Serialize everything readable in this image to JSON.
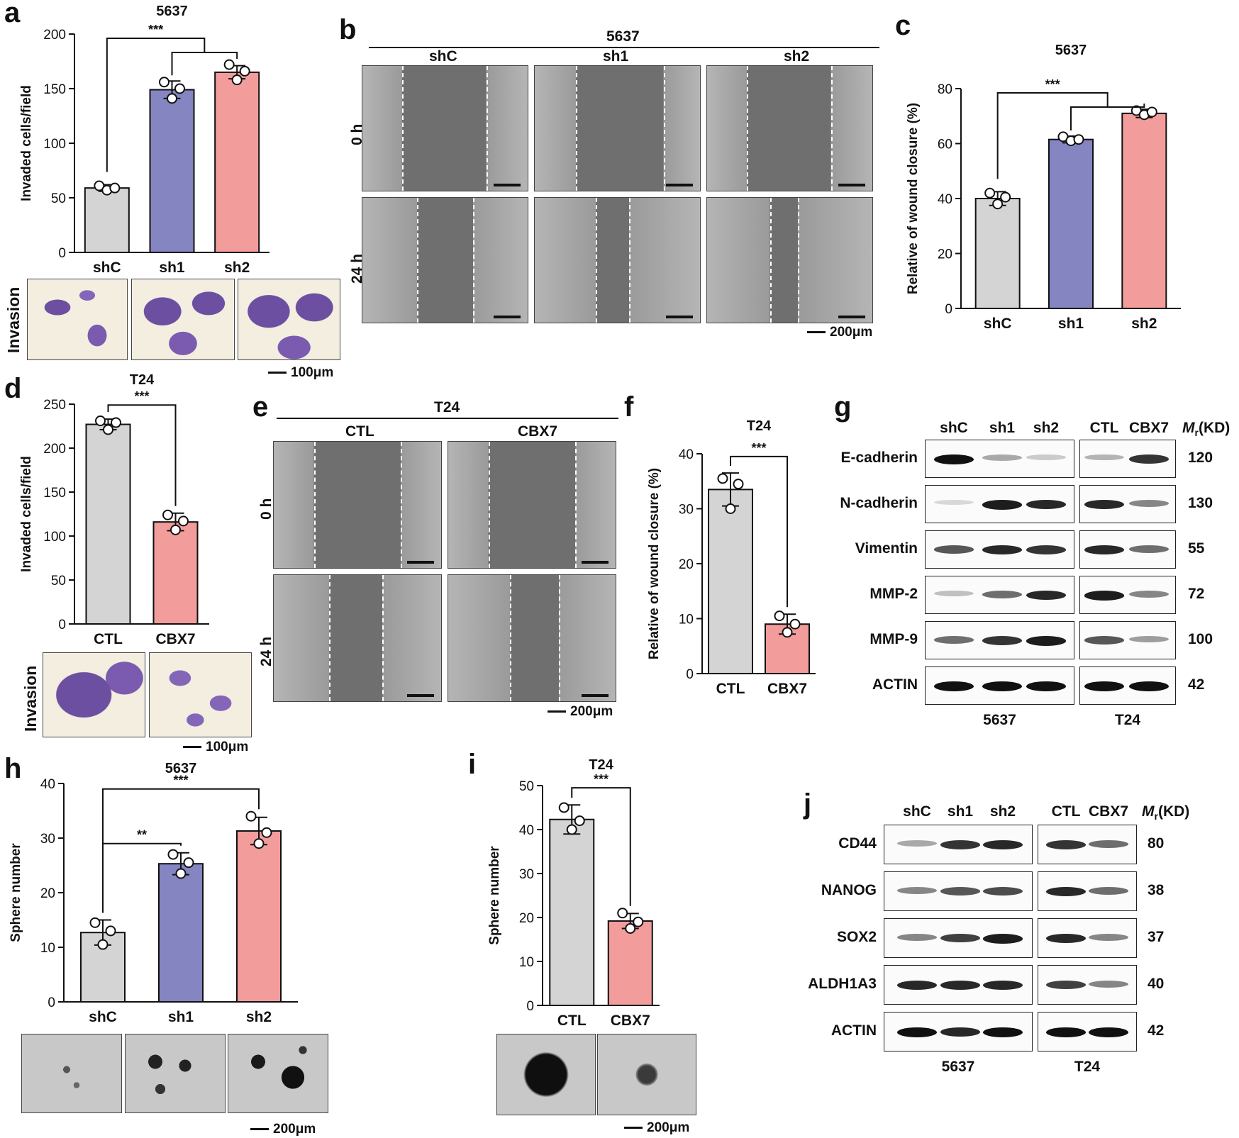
{
  "panels": {
    "a": {
      "letter": "a",
      "invasion": "Invasion",
      "scale": "100μm"
    },
    "b": {
      "letter": "b",
      "cell_line": "5637",
      "columns": [
        "shC",
        "sh1",
        "sh2"
      ],
      "rows": [
        "0 h",
        "24 h"
      ],
      "scale": "200μm"
    },
    "c": {
      "letter": "c"
    },
    "d": {
      "letter": "d",
      "invasion": "Invasion",
      "scale": "100μm"
    },
    "e": {
      "letter": "e",
      "cell_line": "T24",
      "columns": [
        "CTL",
        "CBX7"
      ],
      "rows": [
        "0 h",
        "24 h"
      ],
      "scale": "200μm"
    },
    "f": {
      "letter": "f"
    },
    "g": {
      "letter": "g",
      "lanes_left": [
        "shC",
        "sh1",
        "sh2"
      ],
      "lanes_right": [
        "CTL",
        "CBX7"
      ],
      "mr_header": "M",
      "mr_sub": "r",
      "mr_unit": "(KD)",
      "rows": [
        {
          "name": "E-cadherin",
          "kd": "120"
        },
        {
          "name": "N-cadherin",
          "kd": "130"
        },
        {
          "name": "Vimentin",
          "kd": "55"
        },
        {
          "name": "MMP-2",
          "kd": "72"
        },
        {
          "name": "MMP-9",
          "kd": "100"
        },
        {
          "name": "ACTIN",
          "kd": "42"
        }
      ],
      "footer_left": "5637",
      "footer_right": "T24"
    },
    "h": {
      "letter": "h",
      "scale": "200μm"
    },
    "i": {
      "letter": "i",
      "scale": "200μm"
    },
    "j": {
      "letter": "j",
      "lanes_left": [
        "shC",
        "sh1",
        "sh2"
      ],
      "lanes_right": [
        "CTL",
        "CBX7"
      ],
      "mr_header": "M",
      "mr_sub": "r",
      "mr_unit": "(KD)",
      "rows": [
        {
          "name": "CD44",
          "kd": "80"
        },
        {
          "name": "NANOG",
          "kd": "38"
        },
        {
          "name": "SOX2",
          "kd": "37"
        },
        {
          "name": "ALDH1A3",
          "kd": "40"
        },
        {
          "name": "ACTIN",
          "kd": "42"
        }
      ],
      "footer_left": "5637",
      "footer_right": "T24"
    }
  },
  "colors": {
    "gray": "#d4d4d4",
    "blue": "#8585c1",
    "pink": "#f29c9c",
    "stain": "#6c4fa0"
  },
  "chart_data": [
    {
      "id": "a",
      "type": "bar",
      "title": "5637",
      "ylabel": "Invaded cells/field",
      "categories": [
        "shC",
        "sh1",
        "sh2"
      ],
      "values": [
        59,
        149,
        165
      ],
      "error": [
        3,
        8,
        6
      ],
      "points": [
        [
          61,
          57,
          59
        ],
        [
          156,
          141,
          150
        ],
        [
          172,
          158,
          166
        ]
      ],
      "ylim": [
        0,
        200
      ],
      "yticks": [
        0,
        50,
        100,
        150,
        200
      ],
      "significance": [
        {
          "from": 0,
          "to": [
            1,
            2
          ],
          "label": "***"
        }
      ]
    },
    {
      "id": "c",
      "type": "bar",
      "title": "5637",
      "ylabel": "Relative of wound closure (%)",
      "categories": [
        "shC",
        "sh1",
        "sh2"
      ],
      "values": [
        40,
        61.5,
        71
      ],
      "error": [
        2.5,
        1.2,
        1.5
      ],
      "points": [
        [
          42,
          38,
          40.5
        ],
        [
          62.5,
          61,
          61.5
        ],
        [
          72,
          70.5,
          71.5
        ]
      ],
      "ylim": [
        0,
        80
      ],
      "yticks": [
        0,
        20,
        40,
        60,
        80
      ],
      "significance": [
        {
          "from": 0,
          "to": [
            1,
            2
          ],
          "label": "***"
        }
      ]
    },
    {
      "id": "d",
      "type": "bar",
      "title": "T24",
      "ylabel": "Invaded cells/field",
      "categories": [
        "CTL",
        "CBX7"
      ],
      "values": [
        227,
        116
      ],
      "error": [
        6,
        10
      ],
      "points": [
        [
          231,
          221,
          229
        ],
        [
          124,
          107,
          117
        ]
      ],
      "ylim": [
        0,
        250
      ],
      "yticks": [
        0,
        50,
        100,
        150,
        200,
        250
      ],
      "significance": [
        {
          "from": 0,
          "to": [
            1
          ],
          "label": "***"
        }
      ]
    },
    {
      "id": "f",
      "type": "bar",
      "title": "T24",
      "ylabel": "Relative of wound closure (%)",
      "categories": [
        "CTL",
        "CBX7"
      ],
      "values": [
        33.5,
        9
      ],
      "error": [
        3,
        1.8
      ],
      "points": [
        [
          35.5,
          30,
          34.5
        ],
        [
          10.5,
          7.5,
          9
        ]
      ],
      "ylim": [
        0,
        40
      ],
      "yticks": [
        0,
        10,
        20,
        30,
        40
      ],
      "significance": [
        {
          "from": 0,
          "to": [
            1
          ],
          "label": "***"
        }
      ]
    },
    {
      "id": "h",
      "type": "bar",
      "title": "5637",
      "ylabel": "Sphere number",
      "categories": [
        "shC",
        "sh1",
        "sh2"
      ],
      "values": [
        12.7,
        25.3,
        31.3
      ],
      "error": [
        2.3,
        2,
        2.5
      ],
      "points": [
        [
          14.5,
          10.5,
          13
        ],
        [
          27,
          23.5,
          25.5
        ],
        [
          34,
          29,
          31
        ]
      ],
      "ylim": [
        0,
        40
      ],
      "yticks": [
        0,
        10,
        20,
        30,
        40
      ],
      "significance": [
        {
          "from": 0,
          "to": [
            1
          ],
          "label": "**"
        },
        {
          "from": 0,
          "to": [
            2
          ],
          "label": "***"
        }
      ]
    },
    {
      "id": "i",
      "type": "bar",
      "title": "T24",
      "ylabel": "Sphere number",
      "categories": [
        "CTL",
        "CBX7"
      ],
      "values": [
        42.3,
        19.2
      ],
      "error": [
        3.3,
        1.7
      ],
      "points": [
        [
          45,
          40,
          42
        ],
        [
          21,
          17.5,
          19
        ]
      ],
      "ylim": [
        0,
        50
      ],
      "yticks": [
        0,
        10,
        20,
        30,
        40,
        50
      ],
      "significance": [
        {
          "from": 0,
          "to": [
            1
          ],
          "label": "***"
        }
      ]
    }
  ]
}
